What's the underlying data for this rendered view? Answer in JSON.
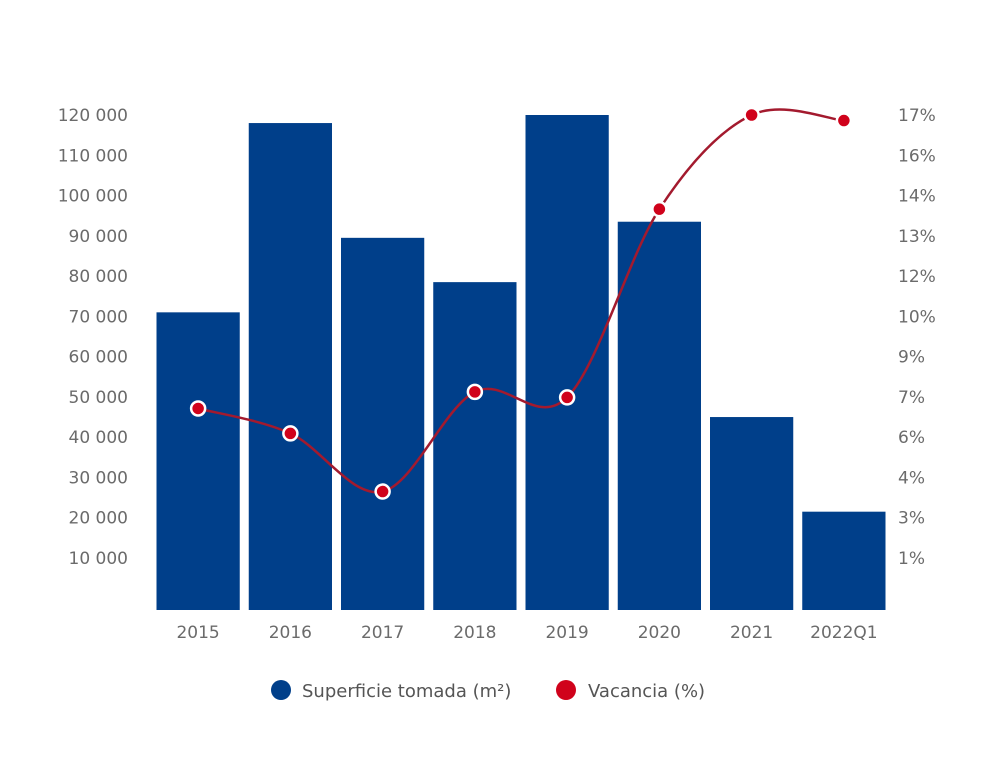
{
  "chart_data": {
    "type": "bar+line",
    "title": "",
    "categories": [
      "2015",
      "2016",
      "2017",
      "2018",
      "2019",
      "2020",
      "2021",
      "2022Q1"
    ],
    "series": [
      {
        "name": "Superficie tomada (m²)",
        "type": "bar",
        "axis": "left",
        "color": "#003f8a",
        "values": [
          71000,
          118000,
          89500,
          78500,
          120000,
          93500,
          45000,
          21500
        ]
      },
      {
        "name": "Vacancia (%)",
        "type": "line",
        "axis": "right",
        "color": "#d0021b",
        "line_color": "#a31a2e",
        "values": [
          6.4,
          5.5,
          3.4,
          7.0,
          6.8,
          13.6,
          17.0,
          16.8
        ]
      }
    ],
    "left_axis": {
      "ticks": [
        120000,
        110000,
        100000,
        90000,
        80000,
        70000,
        60000,
        50000,
        40000,
        30000,
        20000,
        10000
      ],
      "tick_labels": [
        "120 000",
        "110 000",
        "100 000",
        "90 000",
        "80 000",
        "70 000",
        "60 000",
        "50 000",
        "40 000",
        "30 000",
        "20 000",
        "10 000"
      ],
      "ylim": [
        0,
        120000
      ]
    },
    "right_axis": {
      "tick_labels": [
        "17%",
        "16%",
        "14%",
        "13%",
        "12%",
        "10%",
        "9%",
        "7%",
        "6%",
        "4%",
        "3%",
        "1%"
      ],
      "ylim": [
        1,
        17
      ]
    },
    "xlabel": "",
    "ylabel": "",
    "grid": false,
    "legend": {
      "position": "bottom-center",
      "entries": [
        {
          "label": "Superficie tomada (m²)",
          "color": "#003f8a"
        },
        {
          "label": "Vacancia (%)",
          "color": "#d0021b"
        }
      ]
    }
  }
}
